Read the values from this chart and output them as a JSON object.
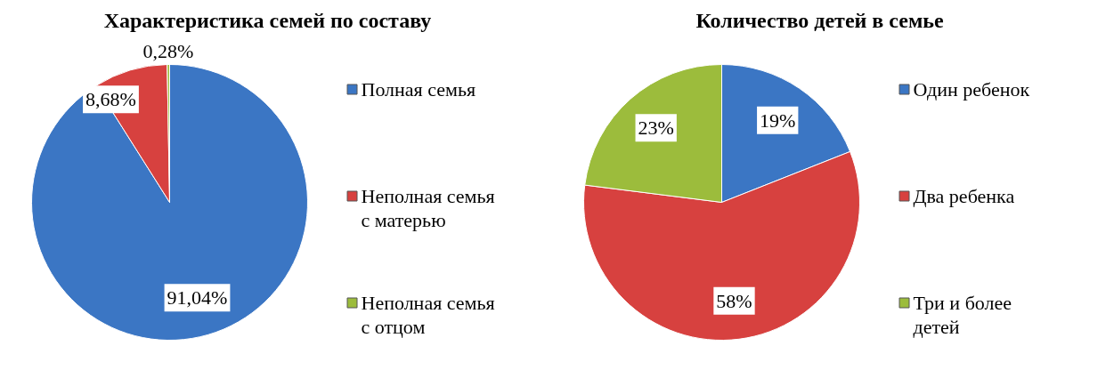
{
  "chart_data": [
    {
      "type": "pie",
      "title": "Характеристика семей по составу",
      "categories": [
        "Полная семья",
        "Неполная семья с матерью",
        "Неполная семья с отцом"
      ],
      "values": [
        91.04,
        8.68,
        0.28
      ],
      "colors": [
        "#3b76c4",
        "#d7413f",
        "#9cbc3c"
      ],
      "value_labels": [
        "91,04%",
        "8,68%",
        "0,28%"
      ],
      "legend": "right"
    },
    {
      "type": "pie",
      "title": "Количество детей в семье",
      "categories": [
        "Один ребенок",
        "Два ребенка",
        "Три и более детей"
      ],
      "values": [
        19,
        58,
        23
      ],
      "colors": [
        "#3b76c4",
        "#d7413f",
        "#9cbc3c"
      ],
      "value_labels": [
        "19%",
        "58%",
        "23%"
      ],
      "legend": "right"
    }
  ]
}
